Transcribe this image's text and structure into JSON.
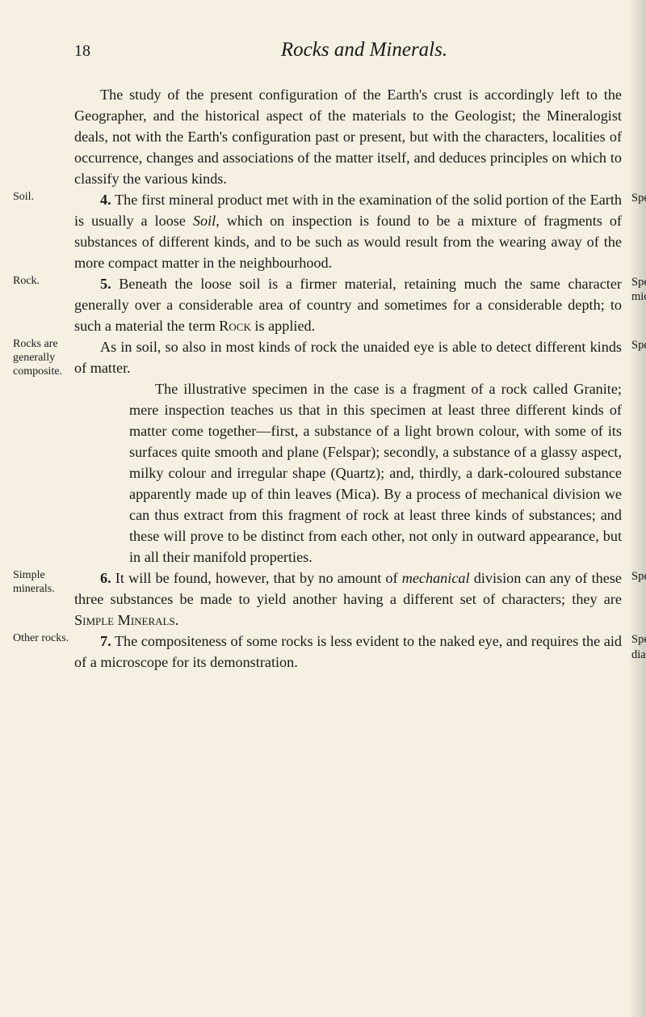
{
  "page_number": "18",
  "chapter_title": "Rocks and Minerals.",
  "left_labels": {
    "soil": "Soil.",
    "rock": "Rock.",
    "rocks_are": "Rocks are generally composite.",
    "simple": "Simple minerals.",
    "other": "Other rocks."
  },
  "right_labels": {
    "specimen1": "Specimen.",
    "specimen2": "Specimen of mica-schist.",
    "specimen3": "Specimen.",
    "specimens": "Specimens.",
    "specimen4": "Specimen of diabase."
  },
  "paragraphs": {
    "intro": "The study of the present configuration of the Earth's crust is accordingly left to the Geographer, and the historical aspect of the materials to the Geologist; the Mineralogist deals, not with the Earth's configuration past or present, but with the characters, localities of occurrence, changes and associations of the matter itself, and deduces principles on which to classify the various kinds.",
    "p4_num": "4.",
    "p4": " The first mineral product met with in the examination of the solid portion of the Earth is usually a loose Soil, which on inspection is found to be a mixture of fragments of substances of different kinds, and to be such as would result from the wearing away of the more compact matter in the neighbourhood.",
    "p5_num": "5.",
    "p5": " Beneath the loose soil is a firmer material, retaining much the same character generally over a considerable area of country and sometimes for a considerable depth; to such a material the term Rock is applied.",
    "p5b": "As in soil, so also in most kinds of rock the unaided eye is able to detect different kinds of matter.",
    "sub": "The illustrative specimen in the case is a fragment of a rock called Granite; mere inspection teaches us that in this specimen at least three different kinds of matter come together—first, a substance of a light brown colour, with some of its surfaces quite smooth and plane (Felspar); secondly, a substance of a glassy aspect, milky colour and irregular shape (Quartz); and, thirdly, a dark-coloured substance apparently made up of thin leaves (Mica). By a process of mechanical division we can thus extract from this fragment of rock at least three kinds of substances; and these will prove to be distinct from each other, not only in outward appearance, but in all their manifold properties.",
    "p6_num": "6.",
    "p6": " It will be found, however, that by no amount of mechanical division can any of these three substances be made to yield another having a different set of characters; they are Simple Minerals.",
    "p7_num": "7.",
    "p7": " The compositeness of some rocks is less evident to the naked eye, and requires the aid of a microscope for its demonstration."
  },
  "italic_words": {
    "soil": "Soil",
    "mechanical": "mechanical",
    "rock_sc": "Rock",
    "simple_sc": "Simple",
    "minerals_sc": "Minerals."
  }
}
